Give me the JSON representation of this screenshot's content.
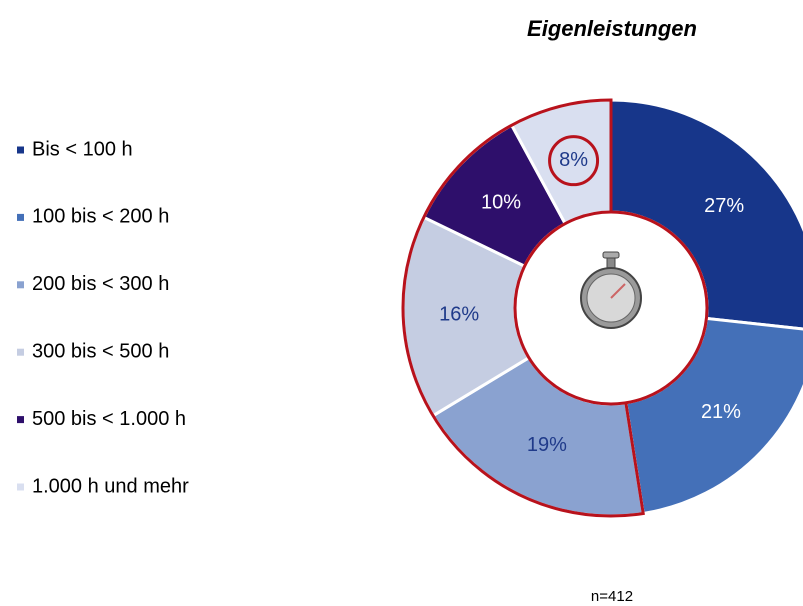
{
  "chart_data": {
    "type": "donut",
    "title": "Eigenleistungen",
    "note": "n=412",
    "categories": [
      "Bis < 100 h",
      "100 bis < 200 h",
      "200 bis < 300 h",
      "300 bis < 500 h",
      "500 bis < 1.000 h",
      "1.000 h und mehr"
    ],
    "values": [
      27,
      21,
      19,
      16,
      10,
      8
    ],
    "value_labels": [
      "27%",
      "21%",
      "19%",
      "16%",
      "10%",
      "8%"
    ],
    "colors": [
      "#17368a",
      "#4470b8",
      "#8aa2d0",
      "#c5cde2",
      "#2e0f6b",
      "#d9dff0"
    ]
  }
}
